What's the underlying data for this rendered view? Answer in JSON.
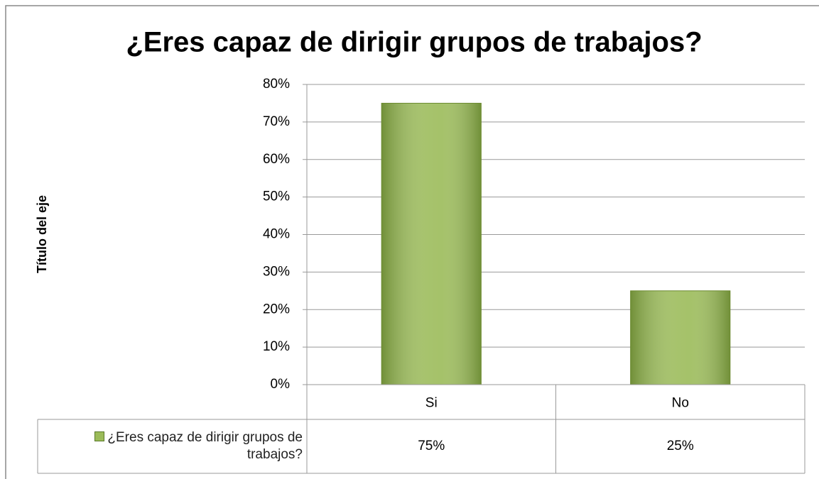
{
  "chart_data": {
    "type": "bar",
    "title": "¿Eres capaz de dirigir grupos de trabajos?",
    "y_axis_label": "Título del eje",
    "categories": [
      "Si",
      "No"
    ],
    "series": [
      {
        "name": "¿Eres capaz de dirigir grupos de trabajos?",
        "color": "#9bbb59",
        "values": [
          75,
          25
        ],
        "value_labels": [
          "75%",
          "25%"
        ]
      }
    ],
    "ylim": [
      0,
      80
    ],
    "yticks": [
      {
        "value": 0,
        "label": "0%"
      },
      {
        "value": 10,
        "label": "10%"
      },
      {
        "value": 20,
        "label": "20%"
      },
      {
        "value": 30,
        "label": "30%"
      },
      {
        "value": 40,
        "label": "40%"
      },
      {
        "value": 50,
        "label": "50%"
      },
      {
        "value": 60,
        "label": "60%"
      },
      {
        "value": 70,
        "label": "70%"
      },
      {
        "value": 80,
        "label": "80%"
      }
    ],
    "grid": true,
    "data_table": true
  }
}
